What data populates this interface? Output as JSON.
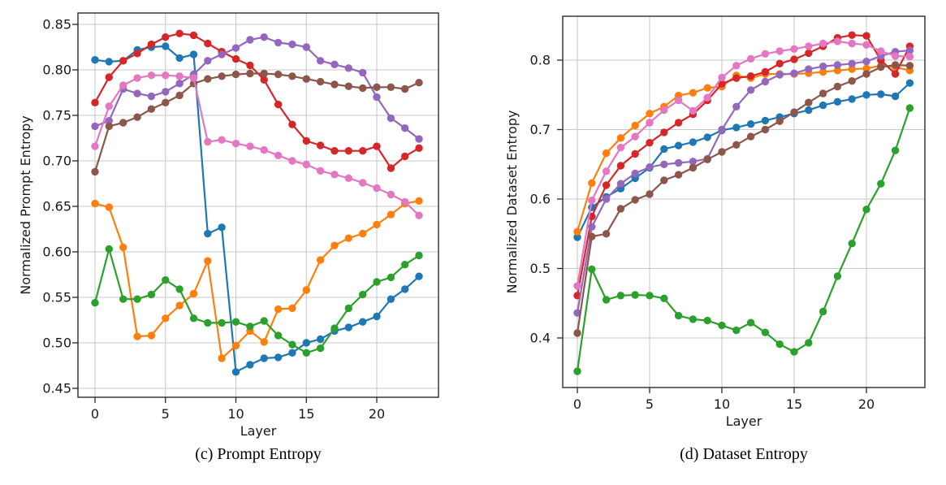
{
  "figure": {
    "background": "#ffffff",
    "grid_color": "#c9c9c9",
    "spine_color": "#2b2b2b",
    "tick_text_color": "#191919"
  },
  "chart_data": [
    {
      "id": "prompt-entropy",
      "type": "line",
      "caption": "(c) Prompt Entropy",
      "xlabel": "Layer",
      "ylabel": "Normalized Prompt Entropy",
      "grid": true,
      "legend": "none",
      "marker": "circle",
      "x_range": [
        0,
        23
      ],
      "ylim": [
        0.443,
        0.862
      ],
      "xticks": [
        "0",
        "5",
        "10",
        "15",
        "20"
      ],
      "yticks": [
        "0.45",
        "0.50",
        "0.55",
        "0.60",
        "0.65",
        "0.70",
        "0.75",
        "0.80",
        "0.85"
      ],
      "x": [
        0,
        1,
        2,
        3,
        4,
        5,
        6,
        7,
        8,
        9,
        10,
        11,
        12,
        13,
        14,
        15,
        16,
        17,
        18,
        19,
        20,
        21,
        22,
        23
      ],
      "series": [
        {
          "name": "series-blue",
          "color": "#1f77b4",
          "values": [
            0.811,
            0.809,
            0.81,
            0.822,
            0.825,
            0.826,
            0.813,
            0.817,
            0.62,
            0.627,
            0.468,
            0.476,
            0.483,
            0.484,
            0.489,
            0.5,
            0.504,
            0.513,
            0.517,
            0.523,
            0.529,
            0.548,
            0.559,
            0.573
          ]
        },
        {
          "name": "series-orange",
          "color": "#ff7f0e",
          "values": [
            0.653,
            0.649,
            0.605,
            0.507,
            0.508,
            0.527,
            0.541,
            0.554,
            0.59,
            0.483,
            0.497,
            0.513,
            0.501,
            0.537,
            0.538,
            0.558,
            0.591,
            0.607,
            0.615,
            0.62,
            0.63,
            0.641,
            0.653,
            0.656
          ]
        },
        {
          "name": "series-green",
          "color": "#2ca02c",
          "values": [
            0.544,
            0.603,
            0.548,
            0.548,
            0.553,
            0.569,
            0.559,
            0.527,
            0.522,
            0.522,
            0.523,
            0.518,
            0.524,
            0.508,
            0.498,
            0.489,
            0.494,
            0.516,
            0.538,
            0.553,
            0.567,
            0.572,
            0.586,
            0.596
          ]
        },
        {
          "name": "series-red",
          "color": "#d62728",
          "values": [
            0.764,
            0.792,
            0.81,
            0.818,
            0.828,
            0.836,
            0.84,
            0.838,
            0.829,
            0.82,
            0.812,
            0.805,
            0.789,
            0.762,
            0.74,
            0.722,
            0.717,
            0.711,
            0.711,
            0.711,
            0.716,
            0.692,
            0.705,
            0.714
          ]
        },
        {
          "name": "series-purple",
          "color": "#9467bd",
          "values": [
            0.738,
            0.744,
            0.779,
            0.774,
            0.771,
            0.776,
            0.785,
            0.795,
            0.81,
            0.817,
            0.824,
            0.833,
            0.836,
            0.83,
            0.828,
            0.825,
            0.81,
            0.806,
            0.802,
            0.797,
            0.77,
            0.747,
            0.736,
            0.724
          ]
        },
        {
          "name": "series-brown",
          "color": "#8c564b",
          "values": [
            0.688,
            0.738,
            0.742,
            0.748,
            0.757,
            0.764,
            0.772,
            0.785,
            0.79,
            0.793,
            0.795,
            0.796,
            0.796,
            0.795,
            0.793,
            0.79,
            0.787,
            0.784,
            0.782,
            0.78,
            0.781,
            0.781,
            0.779,
            0.786
          ]
        },
        {
          "name": "series-pink",
          "color": "#e377c2",
          "values": [
            0.716,
            0.76,
            0.783,
            0.791,
            0.794,
            0.794,
            0.793,
            0.791,
            0.721,
            0.723,
            0.719,
            0.716,
            0.712,
            0.706,
            0.7,
            0.696,
            0.689,
            0.685,
            0.681,
            0.676,
            0.67,
            0.663,
            0.655,
            0.64
          ]
        }
      ]
    },
    {
      "id": "dataset-entropy",
      "type": "line",
      "caption": "(d) Dataset Entropy",
      "xlabel": "Layer",
      "ylabel": "Normalized Dataset Entropy",
      "grid": true,
      "legend": "none",
      "marker": "circle",
      "x_range": [
        0,
        23
      ],
      "ylim": [
        0.329,
        0.863
      ],
      "xticks": [
        "0",
        "5",
        "10",
        "15",
        "20"
      ],
      "yticks": [
        "0.4",
        "0.5",
        "0.6",
        "0.7",
        "0.8"
      ],
      "x": [
        0,
        1,
        2,
        3,
        4,
        5,
        6,
        7,
        8,
        9,
        10,
        11,
        12,
        13,
        14,
        15,
        16,
        17,
        18,
        19,
        20,
        21,
        22,
        23
      ],
      "series": [
        {
          "name": "series-blue",
          "color": "#1f77b4",
          "values": [
            0.545,
            0.588,
            0.603,
            0.615,
            0.63,
            0.645,
            0.672,
            0.677,
            0.682,
            0.689,
            0.699,
            0.703,
            0.708,
            0.713,
            0.718,
            0.723,
            0.728,
            0.735,
            0.74,
            0.744,
            0.75,
            0.751,
            0.748,
            0.767
          ]
        },
        {
          "name": "series-orange",
          "color": "#ff7f0e",
          "values": [
            0.553,
            0.623,
            0.666,
            0.688,
            0.706,
            0.723,
            0.733,
            0.749,
            0.753,
            0.76,
            0.762,
            0.778,
            0.774,
            0.78,
            0.78,
            0.78,
            0.781,
            0.783,
            0.785,
            0.787,
            0.788,
            0.792,
            0.79,
            0.785
          ]
        },
        {
          "name": "series-green",
          "color": "#2ca02c",
          "values": [
            0.352,
            0.499,
            0.455,
            0.461,
            0.462,
            0.461,
            0.457,
            0.432,
            0.427,
            0.425,
            0.418,
            0.411,
            0.422,
            0.408,
            0.391,
            0.38,
            0.393,
            0.438,
            0.489,
            0.536,
            0.585,
            0.622,
            0.67,
            0.731
          ]
        },
        {
          "name": "series-red",
          "color": "#d62728",
          "values": [
            0.461,
            0.575,
            0.62,
            0.648,
            0.665,
            0.681,
            0.696,
            0.71,
            0.722,
            0.742,
            0.766,
            0.774,
            0.777,
            0.783,
            0.795,
            0.801,
            0.81,
            0.82,
            0.832,
            0.836,
            0.835,
            0.8,
            0.78,
            0.82
          ]
        },
        {
          "name": "series-purple",
          "color": "#9467bd",
          "values": [
            0.436,
            0.56,
            0.6,
            0.622,
            0.637,
            0.646,
            0.65,
            0.652,
            0.654,
            0.658,
            0.7,
            0.733,
            0.757,
            0.769,
            0.779,
            0.781,
            0.787,
            0.791,
            0.793,
            0.795,
            0.798,
            0.806,
            0.812,
            0.814
          ]
        },
        {
          "name": "series-brown",
          "color": "#8c564b",
          "values": [
            0.407,
            0.546,
            0.55,
            0.586,
            0.599,
            0.607,
            0.627,
            0.635,
            0.645,
            0.657,
            0.668,
            0.678,
            0.69,
            0.7,
            0.712,
            0.725,
            0.739,
            0.752,
            0.762,
            0.77,
            0.78,
            0.79,
            0.793,
            0.792
          ]
        },
        {
          "name": "series-pink",
          "color": "#e377c2",
          "values": [
            0.475,
            0.598,
            0.64,
            0.674,
            0.69,
            0.71,
            0.728,
            0.742,
            0.727,
            0.746,
            0.775,
            0.792,
            0.802,
            0.809,
            0.813,
            0.816,
            0.82,
            0.824,
            0.827,
            0.824,
            0.822,
            0.813,
            0.806,
            0.805
          ]
        }
      ]
    }
  ]
}
